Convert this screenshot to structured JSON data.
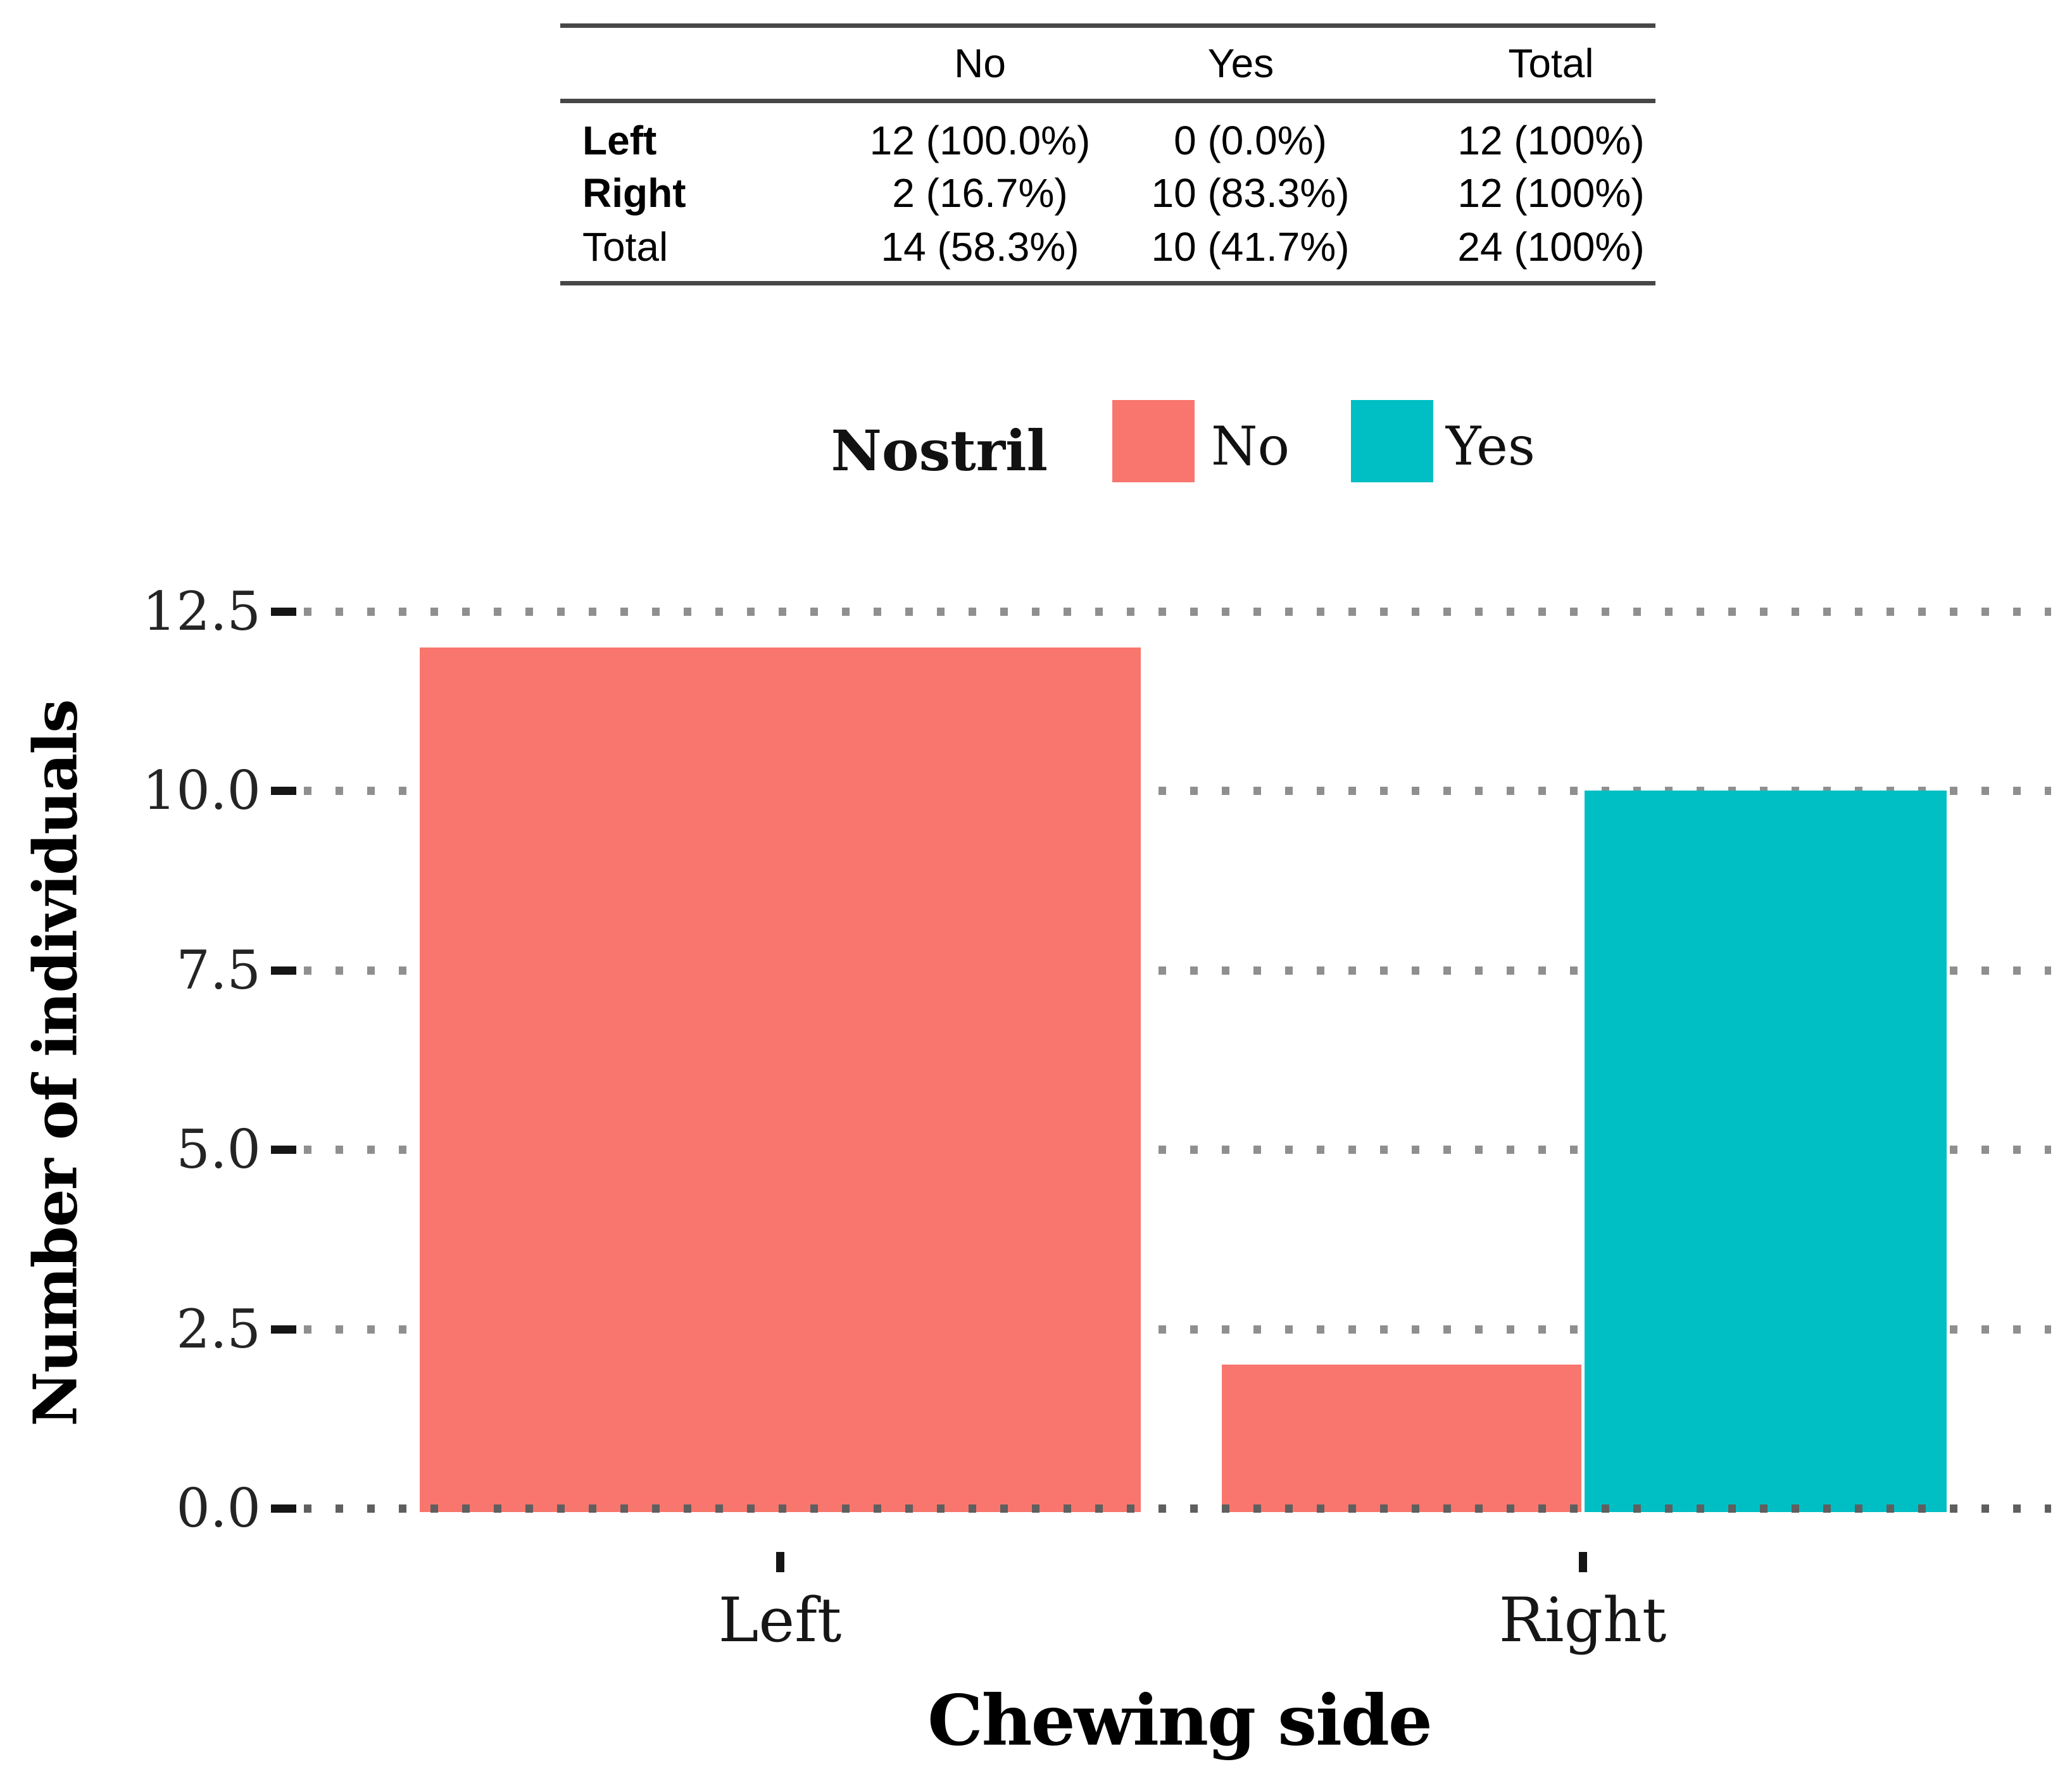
{
  "table": {
    "columns": [
      "",
      "No",
      "Yes",
      "Total"
    ],
    "rows": [
      {
        "label": "Left",
        "bold": true,
        "cells": [
          "12 (100.0%)",
          "0 (0.0%)",
          "12 (100%)"
        ]
      },
      {
        "label": "Right",
        "bold": true,
        "cells": [
          "2 (16.7%)",
          "10 (83.3%)",
          "12 (100%)"
        ]
      },
      {
        "label": "Total",
        "bold": false,
        "cells": [
          "14 (58.3%)",
          "10 (41.7%)",
          "24 (100%)"
        ]
      }
    ]
  },
  "legend": {
    "title": "Nostril",
    "items": [
      {
        "label": "No",
        "color": "#F8766D"
      },
      {
        "label": "Yes",
        "color": "#00BFC4"
      }
    ]
  },
  "chart_data": {
    "type": "bar",
    "categories": [
      "Left",
      "Right"
    ],
    "series": [
      {
        "name": "No",
        "color": "#F8766D",
        "values": [
          12,
          2
        ]
      },
      {
        "name": "Yes",
        "color": "#00BFC4",
        "values": [
          0,
          10
        ]
      }
    ],
    "title": "",
    "xlabel": "Chewing side",
    "ylabel": "Number of individuals",
    "ylim": [
      0,
      12.5
    ],
    "yticks": [
      "0.0",
      "2.5",
      "5.0",
      "7.5",
      "10.0",
      "12.5"
    ],
    "legend_title": "Nostril",
    "legend_position": "top-center",
    "grid": "dotted-horizontal",
    "grid_color": "#8f8f8f"
  }
}
